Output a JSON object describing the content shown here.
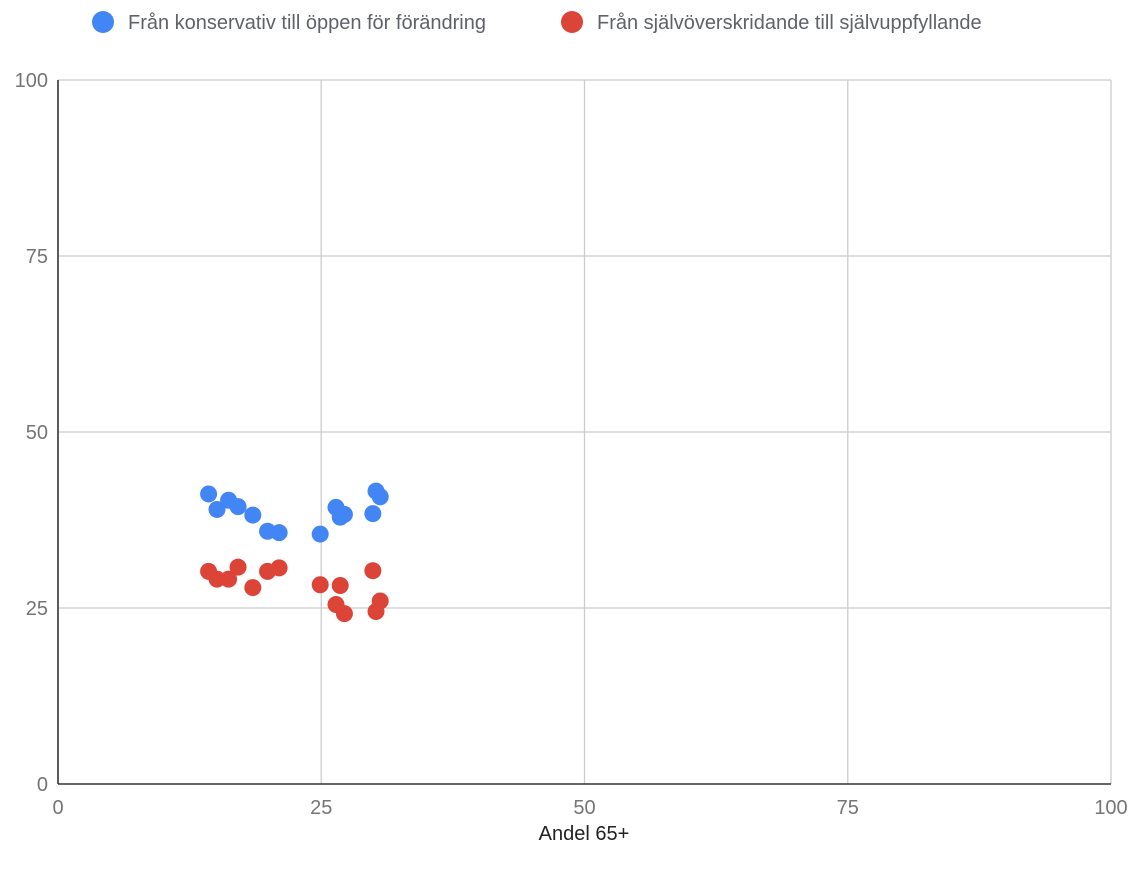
{
  "chart_data": {
    "type": "scatter",
    "title": "",
    "xlabel": "Andel 65+",
    "ylabel": "",
    "xlim": [
      0,
      100
    ],
    "ylim": [
      0,
      100
    ],
    "xticks": [
      "0",
      "25",
      "50",
      "75",
      "100"
    ],
    "yticks": [
      "0",
      "25",
      "50",
      "75",
      "100"
    ],
    "grid": true,
    "legend_position": "top",
    "series": [
      {
        "name": "Från konservativ till öppen för förändring",
        "color": "#4285f4",
        "points": [
          {
            "x": 14.3,
            "y": 41.2
          },
          {
            "x": 15.1,
            "y": 39.0
          },
          {
            "x": 16.2,
            "y": 40.3
          },
          {
            "x": 17.1,
            "y": 39.4
          },
          {
            "x": 18.5,
            "y": 38.2
          },
          {
            "x": 19.9,
            "y": 35.9
          },
          {
            "x": 21.0,
            "y": 35.7
          },
          {
            "x": 24.9,
            "y": 35.5
          },
          {
            "x": 26.4,
            "y": 39.3
          },
          {
            "x": 26.8,
            "y": 37.9
          },
          {
            "x": 27.2,
            "y": 38.3
          },
          {
            "x": 29.9,
            "y": 38.4
          },
          {
            "x": 30.2,
            "y": 41.6
          },
          {
            "x": 30.6,
            "y": 40.8
          }
        ]
      },
      {
        "name": "Från självöverskridande till självuppfyllande",
        "color": "#db4437",
        "points": [
          {
            "x": 14.3,
            "y": 30.2
          },
          {
            "x": 15.1,
            "y": 29.1
          },
          {
            "x": 16.2,
            "y": 29.1
          },
          {
            "x": 17.1,
            "y": 30.8
          },
          {
            "x": 18.5,
            "y": 27.9
          },
          {
            "x": 19.9,
            "y": 30.2
          },
          {
            "x": 21.0,
            "y": 30.7
          },
          {
            "x": 24.9,
            "y": 28.3
          },
          {
            "x": 26.4,
            "y": 25.5
          },
          {
            "x": 26.8,
            "y": 28.2
          },
          {
            "x": 27.2,
            "y": 24.2
          },
          {
            "x": 29.9,
            "y": 30.3
          },
          {
            "x": 30.2,
            "y": 24.5
          },
          {
            "x": 30.6,
            "y": 26.0
          }
        ]
      }
    ]
  }
}
